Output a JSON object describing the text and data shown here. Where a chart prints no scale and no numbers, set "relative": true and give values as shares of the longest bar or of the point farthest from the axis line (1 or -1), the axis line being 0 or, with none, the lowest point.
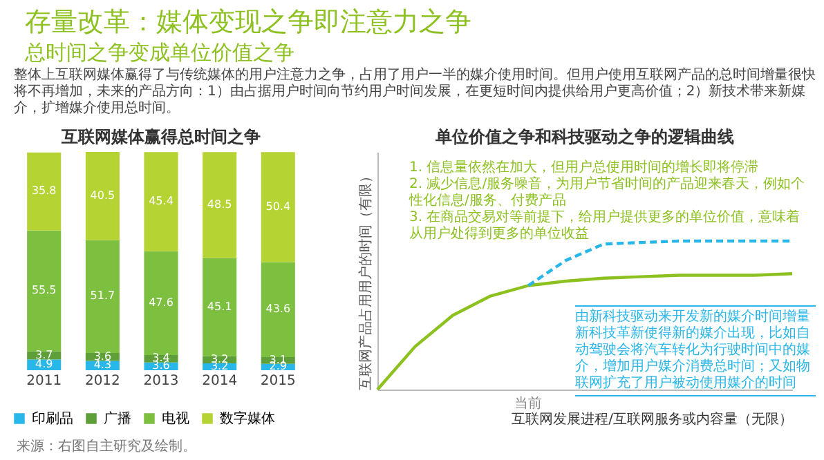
{
  "chart_data": [
    {
      "type": "other",
      "title": "存量改革：媒体变现之争即注意力之争",
      "subtitle": "总时间之争变成单位价值之争",
      "annotations": [
        "整体上互联网媒体赢得了与传统媒体的用户注意力之争，占用了用户一半的媒介使用时间。但用户使用互联网产品的总时间增量很快将不再增加，未来的产品方向：1）由占据用户时间向节约用户时间发展，在更短时间内提供给用户更高价值；2）新技术带来新媒介，扩增媒介使用总时间。"
      ]
    },
    {
      "type": "bar",
      "title": "互联网媒体赢得总时间之争",
      "categories": [
        "2011",
        "2012",
        "2013",
        "2014",
        "2015"
      ],
      "stacked": true,
      "data_labels": true,
      "legend": "bottom",
      "series": [
        {
          "name": "印刷品",
          "color": "#29b6e8",
          "values": [
            4.9,
            4.3,
            3.6,
            3.2,
            2.9
          ]
        },
        {
          "name": "广播",
          "color": "#5e9f3a",
          "values": [
            3.7,
            3.6,
            3.4,
            3.2,
            3.1
          ]
        },
        {
          "name": "电视",
          "color": "#7dbf3f",
          "values": [
            55.5,
            51.7,
            47.6,
            45.1,
            43.6
          ]
        },
        {
          "name": "数字媒体",
          "color": "#b6d334",
          "values": [
            35.8,
            40.5,
            45.4,
            48.5,
            50.4
          ]
        }
      ],
      "annotations": [
        "来源：右图自主研究及绘制。"
      ]
    },
    {
      "type": "line",
      "title": "单位价值之争和科技驱动之争的逻辑曲线",
      "relative": true,
      "xlabel": "互联网发展进程/互联网服务或内容量（无限）",
      "ylabel": "互联网产品占用用户的时间（有限）",
      "categories": [
        null,
        null,
        null,
        null,
        null,
        null,
        null,
        null,
        null,
        null,
        null,
        null
      ],
      "series": [
        {
          "color": "#8cc11f",
          "line_style": "solid",
          "values": [
            0,
            0.29,
            0.5,
            0.63,
            0.7,
            0.73,
            0.75,
            0.76,
            0.77,
            0.77,
            0.77,
            0.78
          ]
        },
        {
          "color": "#29b6e8",
          "line_style": "dashed",
          "values": [
            null,
            null,
            null,
            null,
            0.7,
            0.87,
            0.98,
            0.99,
            1,
            1,
            1,
            1
          ]
        }
      ],
      "annotations": [
        "1. 信息量依然在加大，但用户总使用时间的增长即将停滞",
        "2. 减少信息/服务噪音，为用户节省时间的产品迎来春天，例如个性化信息/服务、付费产品",
        "3. 在商品交易对等前提下，给用户提供更多的单位价值，意味着从用户处得到更多的单位收益",
        "由新科技驱动来开发新的媒介时间增量",
        "新科技革新使得新的媒介出现，比如自动驾驶会将汽车转化为行驶时间中的媒介，增加用户媒介消费总时间；又如物联网扩充了用户被动使用媒介的时间",
        "当前"
      ]
    }
  ]
}
